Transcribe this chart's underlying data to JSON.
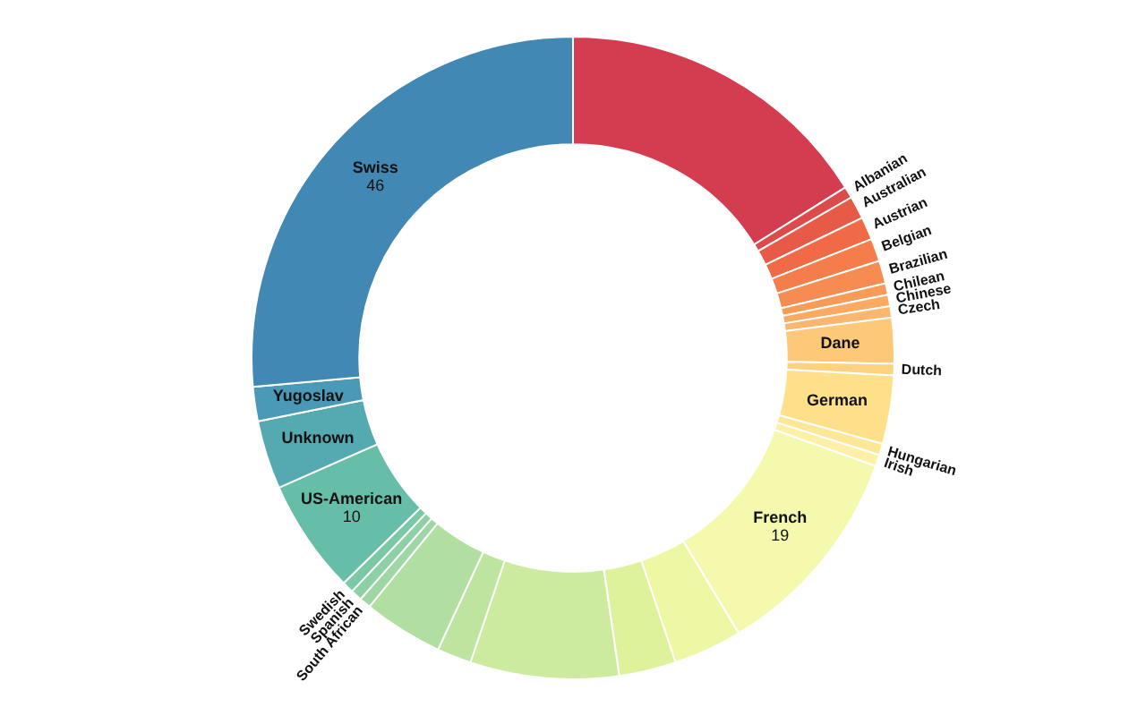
{
  "chart_data": {
    "type": "donut",
    "categories": [
      null,
      "Albanian",
      "Australian",
      "Austrian",
      "Belgian",
      "Brazilian",
      "Chilean",
      "Chinese",
      "Czech",
      "Dane",
      "Dutch",
      "German",
      "Hungarian",
      "Irish",
      "French",
      null,
      null,
      null,
      null,
      null,
      "South African",
      "Spanish",
      "Swedish",
      "US-American",
      "Unknown",
      "Yugoslav",
      "Swiss"
    ],
    "values": [
      28,
      1,
      2,
      2,
      2,
      2,
      1,
      1,
      1,
      4,
      1,
      6,
      1,
      1,
      19,
      6,
      5,
      13,
      3,
      7,
      1,
      1,
      1,
      10,
      6,
      3,
      46
    ],
    "value_labels": [
      null,
      null,
      null,
      null,
      null,
      null,
      null,
      null,
      null,
      null,
      null,
      null,
      null,
      null,
      "19",
      null,
      null,
      null,
      null,
      null,
      null,
      null,
      null,
      "10",
      null,
      null,
      "46"
    ],
    "colors": [
      "#d43d4f",
      "#dd4a4c",
      "#e75a47",
      "#ef6a45",
      "#f47d4b",
      "#f68c52",
      "#f89b59",
      "#fba963",
      "#fdb66d",
      "#fdc877",
      "#fdd280",
      "#fee08b",
      "#fee897",
      "#fff0a6",
      "#f5f9ae",
      "#eef8a4",
      "#def29b",
      "#cceb9e",
      "#bde5a0",
      "#b1dfa2",
      "#9ed7a4",
      "#8dd0a4",
      "#7ac9a5",
      "#66bda8",
      "#55a9b0",
      "#4a99b6",
      "#4288b5"
    ]
  }
}
